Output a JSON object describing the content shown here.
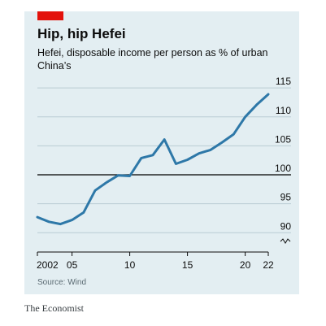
{
  "header": {
    "title": "Hip, hip Hefei",
    "subtitle": "Hefei, disposable income per person as % of urban China’s"
  },
  "source": "Source: Wind",
  "brand": "The Economist",
  "colors": {
    "line": "#2e78a8",
    "accent": "#e3120b",
    "panel": "#e3eef2",
    "baseline": "#000000"
  },
  "chart_data": {
    "type": "line",
    "title": "Hip, hip Hefei",
    "subtitle": "Hefei, disposable income per person as % of urban China’s",
    "xlabel": "",
    "ylabel": "",
    "xlim": [
      2002,
      2022
    ],
    "ylim": [
      88.5,
      116
    ],
    "y_axis_break_below": 90,
    "baseline": 100,
    "x_ticks": [
      2002,
      2005,
      2010,
      2015,
      2020,
      2022
    ],
    "x_tick_labels": [
      "2002",
      "05",
      "10",
      "15",
      "20",
      "22"
    ],
    "y_ticks": [
      90,
      95,
      100,
      105,
      110,
      115
    ],
    "y_tick_labels": [
      "90",
      "95",
      "100",
      "105",
      "110",
      "115"
    ],
    "grid": true,
    "series": [
      {
        "x": [
          2002,
          2003,
          2004,
          2005,
          2006,
          2007,
          2008,
          2009,
          2010,
          2011,
          2012,
          2013,
          2014,
          2015,
          2016,
          2017,
          2018,
          2019,
          2020,
          2021,
          2022
        ],
        "values": [
          92.7,
          91.9,
          91.5,
          92.2,
          93.5,
          97.3,
          98.7,
          99.9,
          99.8,
          102.9,
          103.4,
          106.1,
          101.9,
          102.6,
          103.7,
          104.3,
          105.6,
          107.0,
          110.0,
          112.1,
          113.9
        ]
      }
    ]
  }
}
